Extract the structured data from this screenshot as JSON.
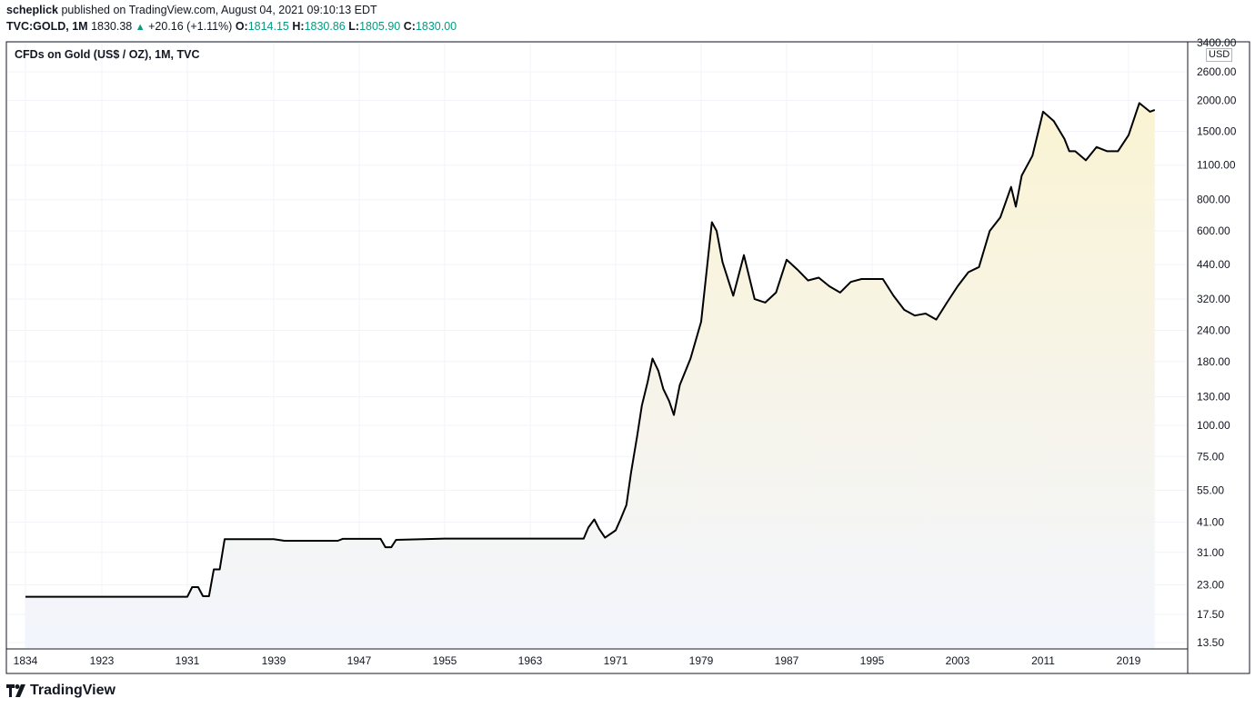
{
  "header": {
    "publisher": "scheplick",
    "published_text": " published on TradingView.com, August 04, 2021 09:10:13 EDT",
    "symbol": "TVC:GOLD, 1M",
    "last": "1830.38",
    "change_arrow": "▲",
    "change": "+20.16 (+1.11%)",
    "open_label": "O:",
    "open": "1814.15",
    "high_label": "H:",
    "high": "1830.86",
    "low_label": "L:",
    "low": "1805.90",
    "close_label": "C:",
    "close": "1830.00"
  },
  "chart_data": {
    "type": "area",
    "title": "CFDs on Gold (US$ / OZ), 1M, TVC",
    "currency": "USD",
    "y_scale": "log",
    "ylim": [
      13.5,
      3400
    ],
    "y_ticks": [
      "3400.00",
      "2600.00",
      "2000.00",
      "1500.00",
      "1100.00",
      "800.00",
      "600.00",
      "440.00",
      "320.00",
      "240.00",
      "180.00",
      "130.00",
      "100.00",
      "75.00",
      "55.00",
      "41.00",
      "31.00",
      "23.00",
      "17.50",
      "13.50"
    ],
    "x_ticks": [
      "1834",
      "1923",
      "1931",
      "1939",
      "1947",
      "1955",
      "1963",
      "1971",
      "1979",
      "1987",
      "1995",
      "2003",
      "2011",
      "2019"
    ],
    "grid": true,
    "line_color": "#000000",
    "fill_top": "#faf4d3",
    "fill_bottom": "#f3f5fd",
    "series": [
      {
        "points": [
          [
            "1834",
            20.6
          ],
          [
            "1890",
            20.6
          ],
          [
            "1931",
            20.6
          ],
          [
            "1931",
            22.5
          ],
          [
            "1932",
            22.5
          ],
          [
            "1932",
            20.7
          ],
          [
            "1933",
            20.7
          ],
          [
            "1933",
            26.5
          ],
          [
            "1934",
            26.5
          ],
          [
            "1934",
            35
          ],
          [
            "1939",
            35
          ],
          [
            "1940",
            34.5
          ],
          [
            "1945",
            34.5
          ],
          [
            "1945",
            35.1
          ],
          [
            "1949",
            35.1
          ],
          [
            "1949",
            32.5
          ],
          [
            "1950",
            32.5
          ],
          [
            "1950",
            34.8
          ],
          [
            "1955",
            35.2
          ],
          [
            "1963",
            35.2
          ],
          [
            "1968",
            35.2
          ],
          [
            "1968",
            39
          ],
          [
            "1969",
            42
          ],
          [
            "1969",
            38.5
          ],
          [
            "1970",
            35.5
          ],
          [
            "1971",
            38
          ],
          [
            "1971",
            42
          ],
          [
            "1972",
            48
          ],
          [
            "1972",
            65
          ],
          [
            "1973",
            90
          ],
          [
            "1973",
            120
          ],
          [
            "1974",
            150
          ],
          [
            "1974",
            185
          ],
          [
            "1975",
            165
          ],
          [
            "1975",
            140
          ],
          [
            "1976",
            125
          ],
          [
            "1976",
            110
          ],
          [
            "1977",
            145
          ],
          [
            "1978",
            185
          ],
          [
            "1979",
            260
          ],
          [
            "1980",
            650
          ],
          [
            "1980",
            600
          ],
          [
            "1981",
            450
          ],
          [
            "1982",
            330
          ],
          [
            "1983",
            480
          ],
          [
            "1983",
            400
          ],
          [
            "1984",
            320
          ],
          [
            "1985",
            310
          ],
          [
            "1986",
            340
          ],
          [
            "1987",
            460
          ],
          [
            "1988",
            420
          ],
          [
            "1989",
            380
          ],
          [
            "1990",
            390
          ],
          [
            "1991",
            360
          ],
          [
            "1992",
            340
          ],
          [
            "1993",
            375
          ],
          [
            "1994",
            385
          ],
          [
            "1995",
            385
          ],
          [
            "1996",
            385
          ],
          [
            "1997",
            330
          ],
          [
            "1998",
            290
          ],
          [
            "1999",
            275
          ],
          [
            "2000",
            280
          ],
          [
            "2001",
            265
          ],
          [
            "2002",
            310
          ],
          [
            "2003",
            360
          ],
          [
            "2004",
            410
          ],
          [
            "2005",
            430
          ],
          [
            "2006",
            600
          ],
          [
            "2007",
            680
          ],
          [
            "2008",
            900
          ],
          [
            "2008",
            750
          ],
          [
            "2009",
            1000
          ],
          [
            "2010",
            1200
          ],
          [
            "2011",
            1800
          ],
          [
            "2012",
            1650
          ],
          [
            "2013",
            1400
          ],
          [
            "2013",
            1250
          ],
          [
            "2014",
            1250
          ],
          [
            "2015",
            1150
          ],
          [
            "2016",
            1300
          ],
          [
            "2017",
            1250
          ],
          [
            "2018",
            1250
          ],
          [
            "2019",
            1450
          ],
          [
            "2020",
            1950
          ],
          [
            "2021",
            1800
          ],
          [
            "2021",
            1830
          ]
        ]
      }
    ]
  }
}
